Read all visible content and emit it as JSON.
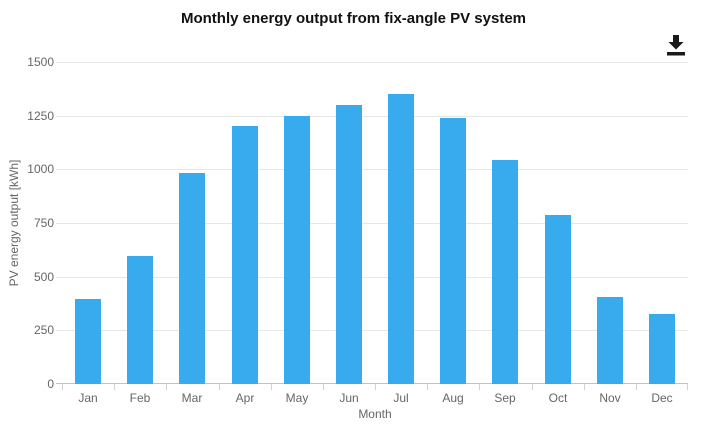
{
  "chart_data": {
    "type": "bar",
    "title": "Monthly energy output from fix-angle PV system",
    "xlabel": "Month",
    "ylabel": "PV energy output [kWh]",
    "categories": [
      "Jan",
      "Feb",
      "Mar",
      "Apr",
      "May",
      "Jun",
      "Jul",
      "Aug",
      "Sep",
      "Oct",
      "Nov",
      "Dec"
    ],
    "values": [
      395,
      595,
      985,
      1200,
      1250,
      1300,
      1350,
      1240,
      1045,
      785,
      405,
      325
    ],
    "ylim": [
      0,
      1500
    ],
    "yticks": [
      0,
      250,
      500,
      750,
      1000,
      1250,
      1500
    ],
    "grid": true,
    "legend": "none",
    "bar_color": "#38abee"
  },
  "colors": {
    "bar": "#38abee",
    "gridline": "#e6e6e6",
    "axis_line": "#c2c2c2",
    "tick_text": "#666666",
    "title_text": "#111111",
    "icon": "#1a1a1a"
  },
  "icons": {
    "download_icon": "download-arrow-to-bar"
  }
}
